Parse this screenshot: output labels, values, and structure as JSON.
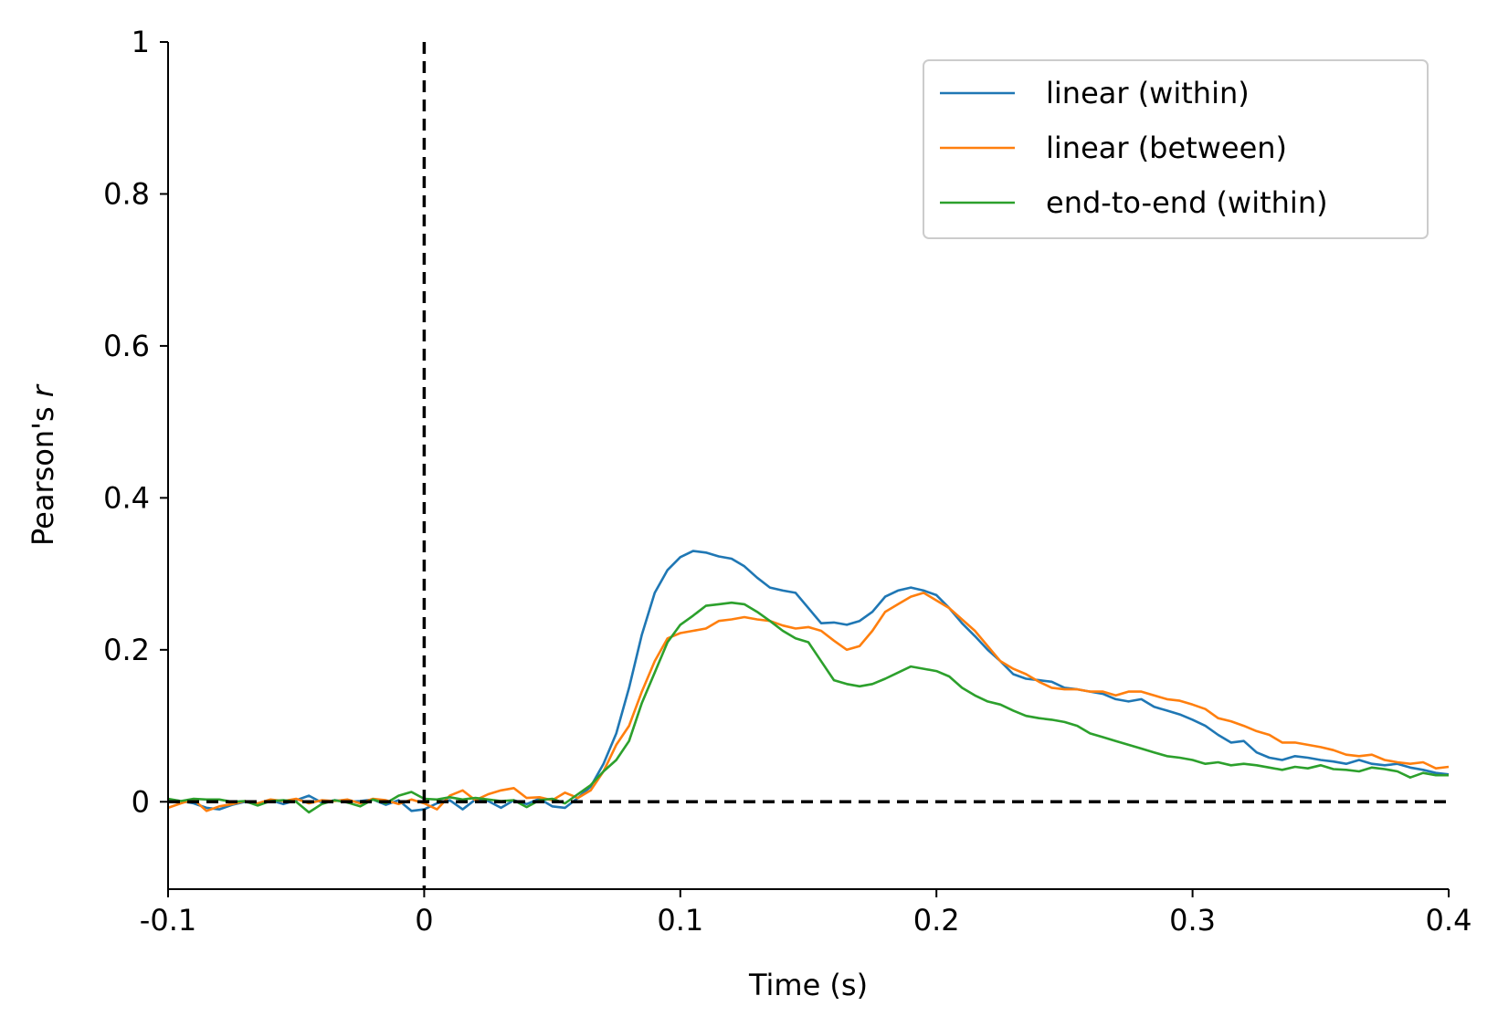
{
  "chart_data": {
    "type": "line",
    "title": "",
    "xlabel": "Time (s)",
    "ylabel_main": "Pearson's ",
    "ylabel_var": "r",
    "xlim": [
      -0.1,
      0.4
    ],
    "ylim": [
      -0.115,
      1.0
    ],
    "xticks": [
      -0.1,
      0,
      0.1,
      0.2,
      0.3,
      0.4
    ],
    "xtick_labels": [
      "-0.1",
      "0",
      "0.1",
      "0.2",
      "0.3",
      "0.4"
    ],
    "yticks": [
      0,
      0.2,
      0.4,
      0.6,
      0.8,
      1.0
    ],
    "ytick_labels": [
      "0",
      "0.2",
      "0.4",
      "0.6",
      "0.8",
      "1"
    ],
    "grid": false,
    "legend_position": "top-right",
    "reference_lines": [
      {
        "orientation": "horizontal",
        "value": 0,
        "style": "dashed",
        "color": "#000000"
      },
      {
        "orientation": "vertical",
        "value": 0,
        "style": "dashed",
        "color": "#000000"
      }
    ],
    "series": [
      {
        "name": "linear (within)",
        "color": "#1f77b4",
        "points": [
          [
            -0.1,
            0.003
          ],
          [
            -0.095,
            0.001
          ],
          [
            -0.09,
            -0.002
          ],
          [
            -0.085,
            -0.008
          ],
          [
            -0.08,
            -0.01
          ],
          [
            -0.075,
            -0.004
          ],
          [
            -0.07,
            0.0
          ],
          [
            -0.065,
            -0.003
          ],
          [
            -0.06,
            0.002
          ],
          [
            -0.055,
            -0.003
          ],
          [
            -0.05,
            0.002
          ],
          [
            -0.045,
            0.008
          ],
          [
            -0.04,
            -0.001
          ],
          [
            -0.035,
            0.002
          ],
          [
            -0.03,
            0.0
          ],
          [
            -0.025,
            0.001
          ],
          [
            -0.02,
            0.003
          ],
          [
            -0.015,
            -0.004
          ],
          [
            -0.01,
            0.002
          ],
          [
            -0.005,
            -0.012
          ],
          [
            0.0,
            -0.01
          ],
          [
            0.005,
            -0.002
          ],
          [
            0.01,
            0.002
          ],
          [
            0.015,
            -0.01
          ],
          [
            0.02,
            0.003
          ],
          [
            0.025,
            0.001
          ],
          [
            0.03,
            -0.008
          ],
          [
            0.035,
            0.002
          ],
          [
            0.04,
            -0.003
          ],
          [
            0.045,
            0.004
          ],
          [
            0.05,
            -0.006
          ],
          [
            0.055,
            -0.008
          ],
          [
            0.06,
            0.005
          ],
          [
            0.065,
            0.02
          ],
          [
            0.07,
            0.05
          ],
          [
            0.075,
            0.09
          ],
          [
            0.08,
            0.15
          ],
          [
            0.085,
            0.22
          ],
          [
            0.09,
            0.275
          ],
          [
            0.095,
            0.305
          ],
          [
            0.1,
            0.322
          ],
          [
            0.105,
            0.33
          ],
          [
            0.11,
            0.328
          ],
          [
            0.115,
            0.323
          ],
          [
            0.12,
            0.32
          ],
          [
            0.125,
            0.31
          ],
          [
            0.13,
            0.295
          ],
          [
            0.135,
            0.282
          ],
          [
            0.14,
            0.278
          ],
          [
            0.145,
            0.275
          ],
          [
            0.15,
            0.255
          ],
          [
            0.155,
            0.235
          ],
          [
            0.16,
            0.236
          ],
          [
            0.165,
            0.233
          ],
          [
            0.17,
            0.238
          ],
          [
            0.175,
            0.25
          ],
          [
            0.18,
            0.27
          ],
          [
            0.185,
            0.278
          ],
          [
            0.19,
            0.282
          ],
          [
            0.195,
            0.278
          ],
          [
            0.2,
            0.272
          ],
          [
            0.205,
            0.255
          ],
          [
            0.21,
            0.235
          ],
          [
            0.215,
            0.218
          ],
          [
            0.22,
            0.2
          ],
          [
            0.225,
            0.185
          ],
          [
            0.23,
            0.168
          ],
          [
            0.235,
            0.162
          ],
          [
            0.24,
            0.16
          ],
          [
            0.245,
            0.158
          ],
          [
            0.25,
            0.15
          ],
          [
            0.255,
            0.148
          ],
          [
            0.26,
            0.145
          ],
          [
            0.265,
            0.142
          ],
          [
            0.27,
            0.135
          ],
          [
            0.275,
            0.132
          ],
          [
            0.28,
            0.135
          ],
          [
            0.285,
            0.125
          ],
          [
            0.29,
            0.12
          ],
          [
            0.295,
            0.115
          ],
          [
            0.3,
            0.108
          ],
          [
            0.305,
            0.1
          ],
          [
            0.31,
            0.088
          ],
          [
            0.315,
            0.078
          ],
          [
            0.32,
            0.08
          ],
          [
            0.325,
            0.065
          ],
          [
            0.33,
            0.058
          ],
          [
            0.335,
            0.055
          ],
          [
            0.34,
            0.06
          ],
          [
            0.345,
            0.058
          ],
          [
            0.35,
            0.055
          ],
          [
            0.355,
            0.053
          ],
          [
            0.36,
            0.05
          ],
          [
            0.365,
            0.055
          ],
          [
            0.37,
            0.05
          ],
          [
            0.375,
            0.048
          ],
          [
            0.38,
            0.05
          ],
          [
            0.385,
            0.045
          ],
          [
            0.39,
            0.042
          ],
          [
            0.395,
            0.038
          ],
          [
            0.4,
            0.036
          ]
        ]
      },
      {
        "name": "linear (between)",
        "color": "#ff7f0e",
        "points": [
          [
            -0.1,
            -0.008
          ],
          [
            -0.095,
            -0.002
          ],
          [
            -0.09,
            0.003
          ],
          [
            -0.085,
            -0.012
          ],
          [
            -0.08,
            -0.006
          ],
          [
            -0.075,
            -0.003
          ],
          [
            -0.07,
            0.001
          ],
          [
            -0.065,
            -0.002
          ],
          [
            -0.06,
            0.003
          ],
          [
            -0.055,
            0.001
          ],
          [
            -0.05,
            0.004
          ],
          [
            -0.045,
            -0.002
          ],
          [
            -0.04,
            0.002
          ],
          [
            -0.035,
            0.001
          ],
          [
            -0.03,
            0.003
          ],
          [
            -0.025,
            -0.002
          ],
          [
            -0.02,
            0.004
          ],
          [
            -0.015,
            0.002
          ],
          [
            -0.01,
            -0.003
          ],
          [
            -0.005,
            0.003
          ],
          [
            0.0,
            -0.002
          ],
          [
            0.005,
            -0.01
          ],
          [
            0.01,
            0.008
          ],
          [
            0.015,
            0.015
          ],
          [
            0.02,
            0.002
          ],
          [
            0.025,
            0.01
          ],
          [
            0.03,
            0.015
          ],
          [
            0.035,
            0.018
          ],
          [
            0.04,
            0.005
          ],
          [
            0.045,
            0.006
          ],
          [
            0.05,
            0.002
          ],
          [
            0.055,
            0.012
          ],
          [
            0.06,
            0.005
          ],
          [
            0.065,
            0.015
          ],
          [
            0.07,
            0.04
          ],
          [
            0.075,
            0.075
          ],
          [
            0.08,
            0.1
          ],
          [
            0.085,
            0.145
          ],
          [
            0.09,
            0.185
          ],
          [
            0.095,
            0.215
          ],
          [
            0.1,
            0.222
          ],
          [
            0.105,
            0.225
          ],
          [
            0.11,
            0.228
          ],
          [
            0.115,
            0.238
          ],
          [
            0.12,
            0.24
          ],
          [
            0.125,
            0.243
          ],
          [
            0.13,
            0.24
          ],
          [
            0.135,
            0.238
          ],
          [
            0.14,
            0.232
          ],
          [
            0.145,
            0.228
          ],
          [
            0.15,
            0.23
          ],
          [
            0.155,
            0.225
          ],
          [
            0.16,
            0.212
          ],
          [
            0.165,
            0.2
          ],
          [
            0.17,
            0.205
          ],
          [
            0.175,
            0.225
          ],
          [
            0.18,
            0.25
          ],
          [
            0.185,
            0.26
          ],
          [
            0.19,
            0.27
          ],
          [
            0.195,
            0.275
          ],
          [
            0.2,
            0.265
          ],
          [
            0.205,
            0.255
          ],
          [
            0.21,
            0.24
          ],
          [
            0.215,
            0.225
          ],
          [
            0.22,
            0.205
          ],
          [
            0.225,
            0.185
          ],
          [
            0.23,
            0.175
          ],
          [
            0.235,
            0.168
          ],
          [
            0.24,
            0.158
          ],
          [
            0.245,
            0.15
          ],
          [
            0.25,
            0.148
          ],
          [
            0.255,
            0.148
          ],
          [
            0.26,
            0.145
          ],
          [
            0.265,
            0.145
          ],
          [
            0.27,
            0.14
          ],
          [
            0.275,
            0.145
          ],
          [
            0.28,
            0.145
          ],
          [
            0.285,
            0.14
          ],
          [
            0.29,
            0.135
          ],
          [
            0.295,
            0.133
          ],
          [
            0.3,
            0.128
          ],
          [
            0.305,
            0.122
          ],
          [
            0.31,
            0.11
          ],
          [
            0.315,
            0.106
          ],
          [
            0.32,
            0.1
          ],
          [
            0.325,
            0.093
          ],
          [
            0.33,
            0.088
          ],
          [
            0.335,
            0.078
          ],
          [
            0.34,
            0.078
          ],
          [
            0.345,
            0.075
          ],
          [
            0.35,
            0.072
          ],
          [
            0.355,
            0.068
          ],
          [
            0.36,
            0.062
          ],
          [
            0.365,
            0.06
          ],
          [
            0.37,
            0.062
          ],
          [
            0.375,
            0.055
          ],
          [
            0.38,
            0.052
          ],
          [
            0.385,
            0.05
          ],
          [
            0.39,
            0.052
          ],
          [
            0.395,
            0.044
          ],
          [
            0.4,
            0.046
          ]
        ]
      },
      {
        "name": "end-to-end (within)",
        "color": "#2ca02c",
        "points": [
          [
            -0.1,
            0.004
          ],
          [
            -0.095,
            0.001
          ],
          [
            -0.09,
            0.004
          ],
          [
            -0.085,
            0.003
          ],
          [
            -0.08,
            0.003
          ],
          [
            -0.075,
            0.0
          ],
          [
            -0.07,
            0.001
          ],
          [
            -0.065,
            -0.005
          ],
          [
            -0.06,
            0.001
          ],
          [
            -0.055,
            0.002
          ],
          [
            -0.05,
            0.0
          ],
          [
            -0.045,
            -0.014
          ],
          [
            -0.04,
            -0.003
          ],
          [
            -0.035,
            0.002
          ],
          [
            -0.03,
            -0.001
          ],
          [
            -0.025,
            -0.006
          ],
          [
            -0.02,
            0.003
          ],
          [
            -0.015,
            -0.002
          ],
          [
            -0.01,
            0.008
          ],
          [
            -0.005,
            0.013
          ],
          [
            0.0,
            0.004
          ],
          [
            0.005,
            0.003
          ],
          [
            0.01,
            0.006
          ],
          [
            0.015,
            0.003
          ],
          [
            0.02,
            0.005
          ],
          [
            0.025,
            0.003
          ],
          [
            0.03,
            0.001
          ],
          [
            0.035,
            0.002
          ],
          [
            0.04,
            -0.007
          ],
          [
            0.045,
            0.002
          ],
          [
            0.05,
            0.004
          ],
          [
            0.055,
            -0.002
          ],
          [
            0.06,
            0.01
          ],
          [
            0.065,
            0.022
          ],
          [
            0.07,
            0.04
          ],
          [
            0.075,
            0.055
          ],
          [
            0.08,
            0.08
          ],
          [
            0.085,
            0.13
          ],
          [
            0.09,
            0.17
          ],
          [
            0.095,
            0.21
          ],
          [
            0.1,
            0.233
          ],
          [
            0.105,
            0.245
          ],
          [
            0.11,
            0.258
          ],
          [
            0.115,
            0.26
          ],
          [
            0.12,
            0.262
          ],
          [
            0.125,
            0.26
          ],
          [
            0.13,
            0.25
          ],
          [
            0.135,
            0.238
          ],
          [
            0.14,
            0.225
          ],
          [
            0.145,
            0.215
          ],
          [
            0.15,
            0.21
          ],
          [
            0.155,
            0.185
          ],
          [
            0.16,
            0.16
          ],
          [
            0.165,
            0.155
          ],
          [
            0.17,
            0.152
          ],
          [
            0.175,
            0.155
          ],
          [
            0.18,
            0.162
          ],
          [
            0.185,
            0.17
          ],
          [
            0.19,
            0.178
          ],
          [
            0.195,
            0.175
          ],
          [
            0.2,
            0.172
          ],
          [
            0.205,
            0.165
          ],
          [
            0.21,
            0.15
          ],
          [
            0.215,
            0.14
          ],
          [
            0.22,
            0.132
          ],
          [
            0.225,
            0.128
          ],
          [
            0.23,
            0.12
          ],
          [
            0.235,
            0.113
          ],
          [
            0.24,
            0.11
          ],
          [
            0.245,
            0.108
          ],
          [
            0.25,
            0.105
          ],
          [
            0.255,
            0.1
          ],
          [
            0.26,
            0.09
          ],
          [
            0.265,
            0.085
          ],
          [
            0.27,
            0.08
          ],
          [
            0.275,
            0.075
          ],
          [
            0.28,
            0.07
          ],
          [
            0.285,
            0.065
          ],
          [
            0.29,
            0.06
          ],
          [
            0.295,
            0.058
          ],
          [
            0.3,
            0.055
          ],
          [
            0.305,
            0.05
          ],
          [
            0.31,
            0.052
          ],
          [
            0.315,
            0.048
          ],
          [
            0.32,
            0.05
          ],
          [
            0.325,
            0.048
          ],
          [
            0.33,
            0.045
          ],
          [
            0.335,
            0.042
          ],
          [
            0.34,
            0.046
          ],
          [
            0.345,
            0.044
          ],
          [
            0.35,
            0.048
          ],
          [
            0.355,
            0.043
          ],
          [
            0.36,
            0.042
          ],
          [
            0.365,
            0.04
          ],
          [
            0.37,
            0.045
          ],
          [
            0.375,
            0.043
          ],
          [
            0.38,
            0.04
          ],
          [
            0.385,
            0.032
          ],
          [
            0.39,
            0.038
          ],
          [
            0.395,
            0.035
          ],
          [
            0.4,
            0.035
          ]
        ]
      }
    ]
  }
}
